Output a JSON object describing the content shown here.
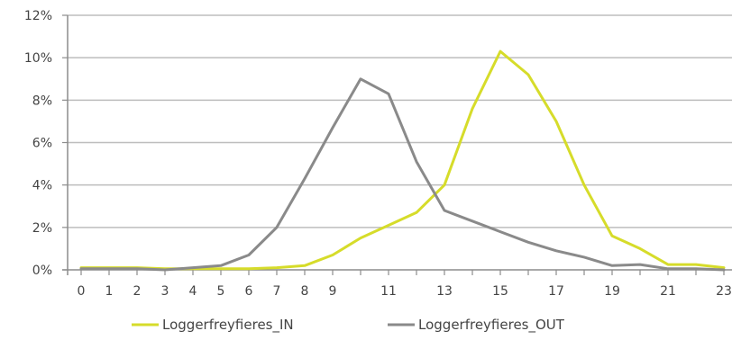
{
  "chart_data": {
    "type": "line",
    "title": "",
    "xlabel": "",
    "ylabel": "",
    "x": [
      0,
      1,
      2,
      3,
      4,
      5,
      6,
      7,
      8,
      9,
      10,
      11,
      12,
      13,
      14,
      15,
      16,
      17,
      18,
      19,
      20,
      21,
      22,
      23
    ],
    "x_tick_labels": [
      "0",
      "1",
      "2",
      "3",
      "4",
      "5",
      "6",
      "7",
      "8",
      "9",
      "11",
      "13",
      "15",
      "17",
      "19",
      "21",
      "23"
    ],
    "y_tick_labels": [
      "0%",
      "2%",
      "4%",
      "6%",
      "8%",
      "10%",
      "12%"
    ],
    "ylim": [
      0,
      12
    ],
    "y_unit": "%",
    "grid": "horizontal",
    "legend_position": "bottom",
    "series": [
      {
        "name": "Loggerfreyfieres_IN",
        "color": "#d6dc2a",
        "values": [
          0.1,
          0.1,
          0.1,
          0.05,
          0.05,
          0.05,
          0.05,
          0.1,
          0.2,
          0.7,
          1.5,
          2.1,
          2.7,
          4.0,
          7.6,
          10.3,
          9.2,
          7.0,
          4.0,
          1.6,
          1.0,
          0.25,
          0.25,
          0.1
        ]
      },
      {
        "name": "Loggerfreyfieres_OUT",
        "color": "#8a8a8a",
        "values": [
          0.05,
          0.05,
          0.05,
          0.0,
          0.1,
          0.2,
          0.7,
          2.0,
          4.3,
          6.7,
          9.0,
          8.3,
          5.1,
          2.8,
          2.3,
          1.8,
          1.3,
          0.9,
          0.6,
          0.2,
          0.25,
          0.05,
          0.05,
          0.0
        ]
      }
    ]
  }
}
